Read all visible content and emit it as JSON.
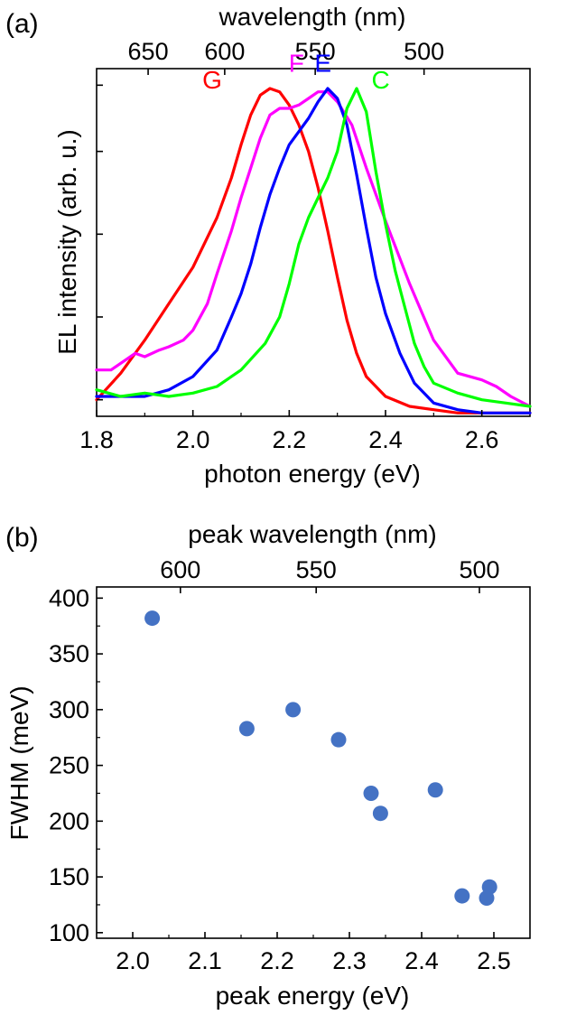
{
  "chart_data": [
    {
      "type": "line",
      "panel_label": "(a)",
      "xlabel": "photon energy (eV)",
      "ylabel": "EL intensity (arb. u.)",
      "top_xlabel": "wavelength (nm)",
      "xlim": [
        1.8,
        2.7
      ],
      "ylim": [
        0,
        1.05
      ],
      "x_ticks": [
        1.8,
        2.0,
        2.2,
        2.4,
        2.6
      ],
      "x_tick_labels": [
        "1.8",
        "2.0",
        "2.2",
        "2.4",
        "2.6"
      ],
      "top_ticks": [
        {
          "label": "650",
          "energy": 1.907
        },
        {
          "label": "600",
          "energy": 2.066
        },
        {
          "label": "550",
          "energy": 2.254
        },
        {
          "label": "500",
          "energy": 2.48
        }
      ],
      "series": [
        {
          "name": "G",
          "color": "#ff0000",
          "x": [
            1.8,
            1.85,
            1.9,
            1.95,
            2.0,
            2.05,
            2.08,
            2.1,
            2.12,
            2.14,
            2.16,
            2.18,
            2.2,
            2.22,
            2.24,
            2.26,
            2.28,
            2.3,
            2.32,
            2.34,
            2.36,
            2.4,
            2.45,
            2.5,
            2.55,
            2.6,
            2.65,
            2.7
          ],
          "y": [
            0.05,
            0.13,
            0.23,
            0.34,
            0.45,
            0.6,
            0.72,
            0.82,
            0.91,
            0.97,
            0.99,
            0.98,
            0.94,
            0.88,
            0.8,
            0.69,
            0.56,
            0.42,
            0.29,
            0.19,
            0.12,
            0.06,
            0.03,
            0.02,
            0.01,
            0.01,
            0.01,
            0.01
          ]
        },
        {
          "name": "F",
          "color": "#ff00ff",
          "x": [
            1.8,
            1.83,
            1.85,
            1.88,
            1.9,
            1.93,
            1.95,
            1.98,
            2.0,
            2.03,
            2.05,
            2.08,
            2.1,
            2.12,
            2.14,
            2.16,
            2.18,
            2.2,
            2.22,
            2.24,
            2.26,
            2.28,
            2.3,
            2.33,
            2.36,
            2.4,
            2.45,
            2.5,
            2.55,
            2.6,
            2.63,
            2.66,
            2.7
          ],
          "y": [
            0.14,
            0.14,
            0.16,
            0.19,
            0.18,
            0.2,
            0.21,
            0.23,
            0.26,
            0.34,
            0.43,
            0.56,
            0.66,
            0.75,
            0.84,
            0.91,
            0.93,
            0.93,
            0.94,
            0.96,
            0.98,
            0.98,
            0.95,
            0.88,
            0.75,
            0.59,
            0.4,
            0.23,
            0.13,
            0.11,
            0.09,
            0.06,
            0.03
          ]
        },
        {
          "name": "E",
          "color": "#0000ff",
          "x": [
            1.8,
            1.85,
            1.9,
            1.95,
            2.0,
            2.05,
            2.08,
            2.1,
            2.12,
            2.14,
            2.16,
            2.18,
            2.2,
            2.22,
            2.24,
            2.26,
            2.28,
            2.3,
            2.32,
            2.34,
            2.36,
            2.38,
            2.4,
            2.43,
            2.46,
            2.5,
            2.55,
            2.6,
            2.65,
            2.7
          ],
          "y": [
            0.06,
            0.06,
            0.06,
            0.08,
            0.12,
            0.2,
            0.3,
            0.37,
            0.46,
            0.57,
            0.67,
            0.75,
            0.82,
            0.86,
            0.9,
            0.95,
            0.99,
            0.96,
            0.88,
            0.73,
            0.57,
            0.42,
            0.31,
            0.19,
            0.1,
            0.04,
            0.02,
            0.01,
            0.01,
            0.01
          ]
        },
        {
          "name": "C",
          "color": "#00ff00",
          "x": [
            1.8,
            1.85,
            1.9,
            1.95,
            2.0,
            2.05,
            2.1,
            2.15,
            2.18,
            2.2,
            2.22,
            2.24,
            2.26,
            2.28,
            2.3,
            2.32,
            2.34,
            2.36,
            2.38,
            2.4,
            2.42,
            2.44,
            2.46,
            2.48,
            2.5,
            2.55,
            2.6,
            2.65,
            2.7
          ],
          "y": [
            0.08,
            0.06,
            0.07,
            0.06,
            0.07,
            0.09,
            0.14,
            0.22,
            0.3,
            0.4,
            0.52,
            0.6,
            0.66,
            0.72,
            0.8,
            0.93,
            0.99,
            0.92,
            0.74,
            0.58,
            0.44,
            0.33,
            0.22,
            0.15,
            0.1,
            0.07,
            0.05,
            0.04,
            0.03
          ]
        }
      ],
      "curve_labels": [
        {
          "text": "G",
          "color": "#ff0000",
          "x": 2.04,
          "y": 0.99
        },
        {
          "text": "F",
          "color": "#ff00ff",
          "x": 2.215,
          "y": 1.04
        },
        {
          "text": "E",
          "color": "#0000ff",
          "x": 2.27,
          "y": 1.04
        },
        {
          "text": "C",
          "color": "#00ff00",
          "x": 2.39,
          "y": 0.99
        }
      ]
    },
    {
      "type": "scatter",
      "panel_label": "(b)",
      "xlabel": "peak energy (eV)",
      "ylabel": "FWHM (meV)",
      "top_xlabel": "peak wavelength (nm)",
      "xlim": [
        1.95,
        2.55
      ],
      "ylim": [
        95,
        410
      ],
      "x_ticks": [
        2.0,
        2.1,
        2.2,
        2.3,
        2.4,
        2.5
      ],
      "x_tick_labels": [
        "2.0",
        "2.1",
        "2.2",
        "2.3",
        "2.4",
        "2.5"
      ],
      "y_ticks": [
        100,
        150,
        200,
        250,
        300,
        350,
        400
      ],
      "y_tick_labels": [
        "100",
        "150",
        "200",
        "250",
        "300",
        "350",
        "400"
      ],
      "top_ticks": [
        {
          "label": "600",
          "energy": 2.066
        },
        {
          "label": "550",
          "energy": 2.254
        },
        {
          "label": "500",
          "energy": 2.48
        }
      ],
      "marker_color": "#4472c4",
      "points": [
        {
          "x": 2.027,
          "y": 382
        },
        {
          "x": 2.158,
          "y": 283
        },
        {
          "x": 2.222,
          "y": 300
        },
        {
          "x": 2.285,
          "y": 273
        },
        {
          "x": 2.33,
          "y": 225
        },
        {
          "x": 2.343,
          "y": 207
        },
        {
          "x": 2.419,
          "y": 228
        },
        {
          "x": 2.456,
          "y": 133
        },
        {
          "x": 2.49,
          "y": 131
        },
        {
          "x": 2.494,
          "y": 141
        }
      ]
    }
  ]
}
